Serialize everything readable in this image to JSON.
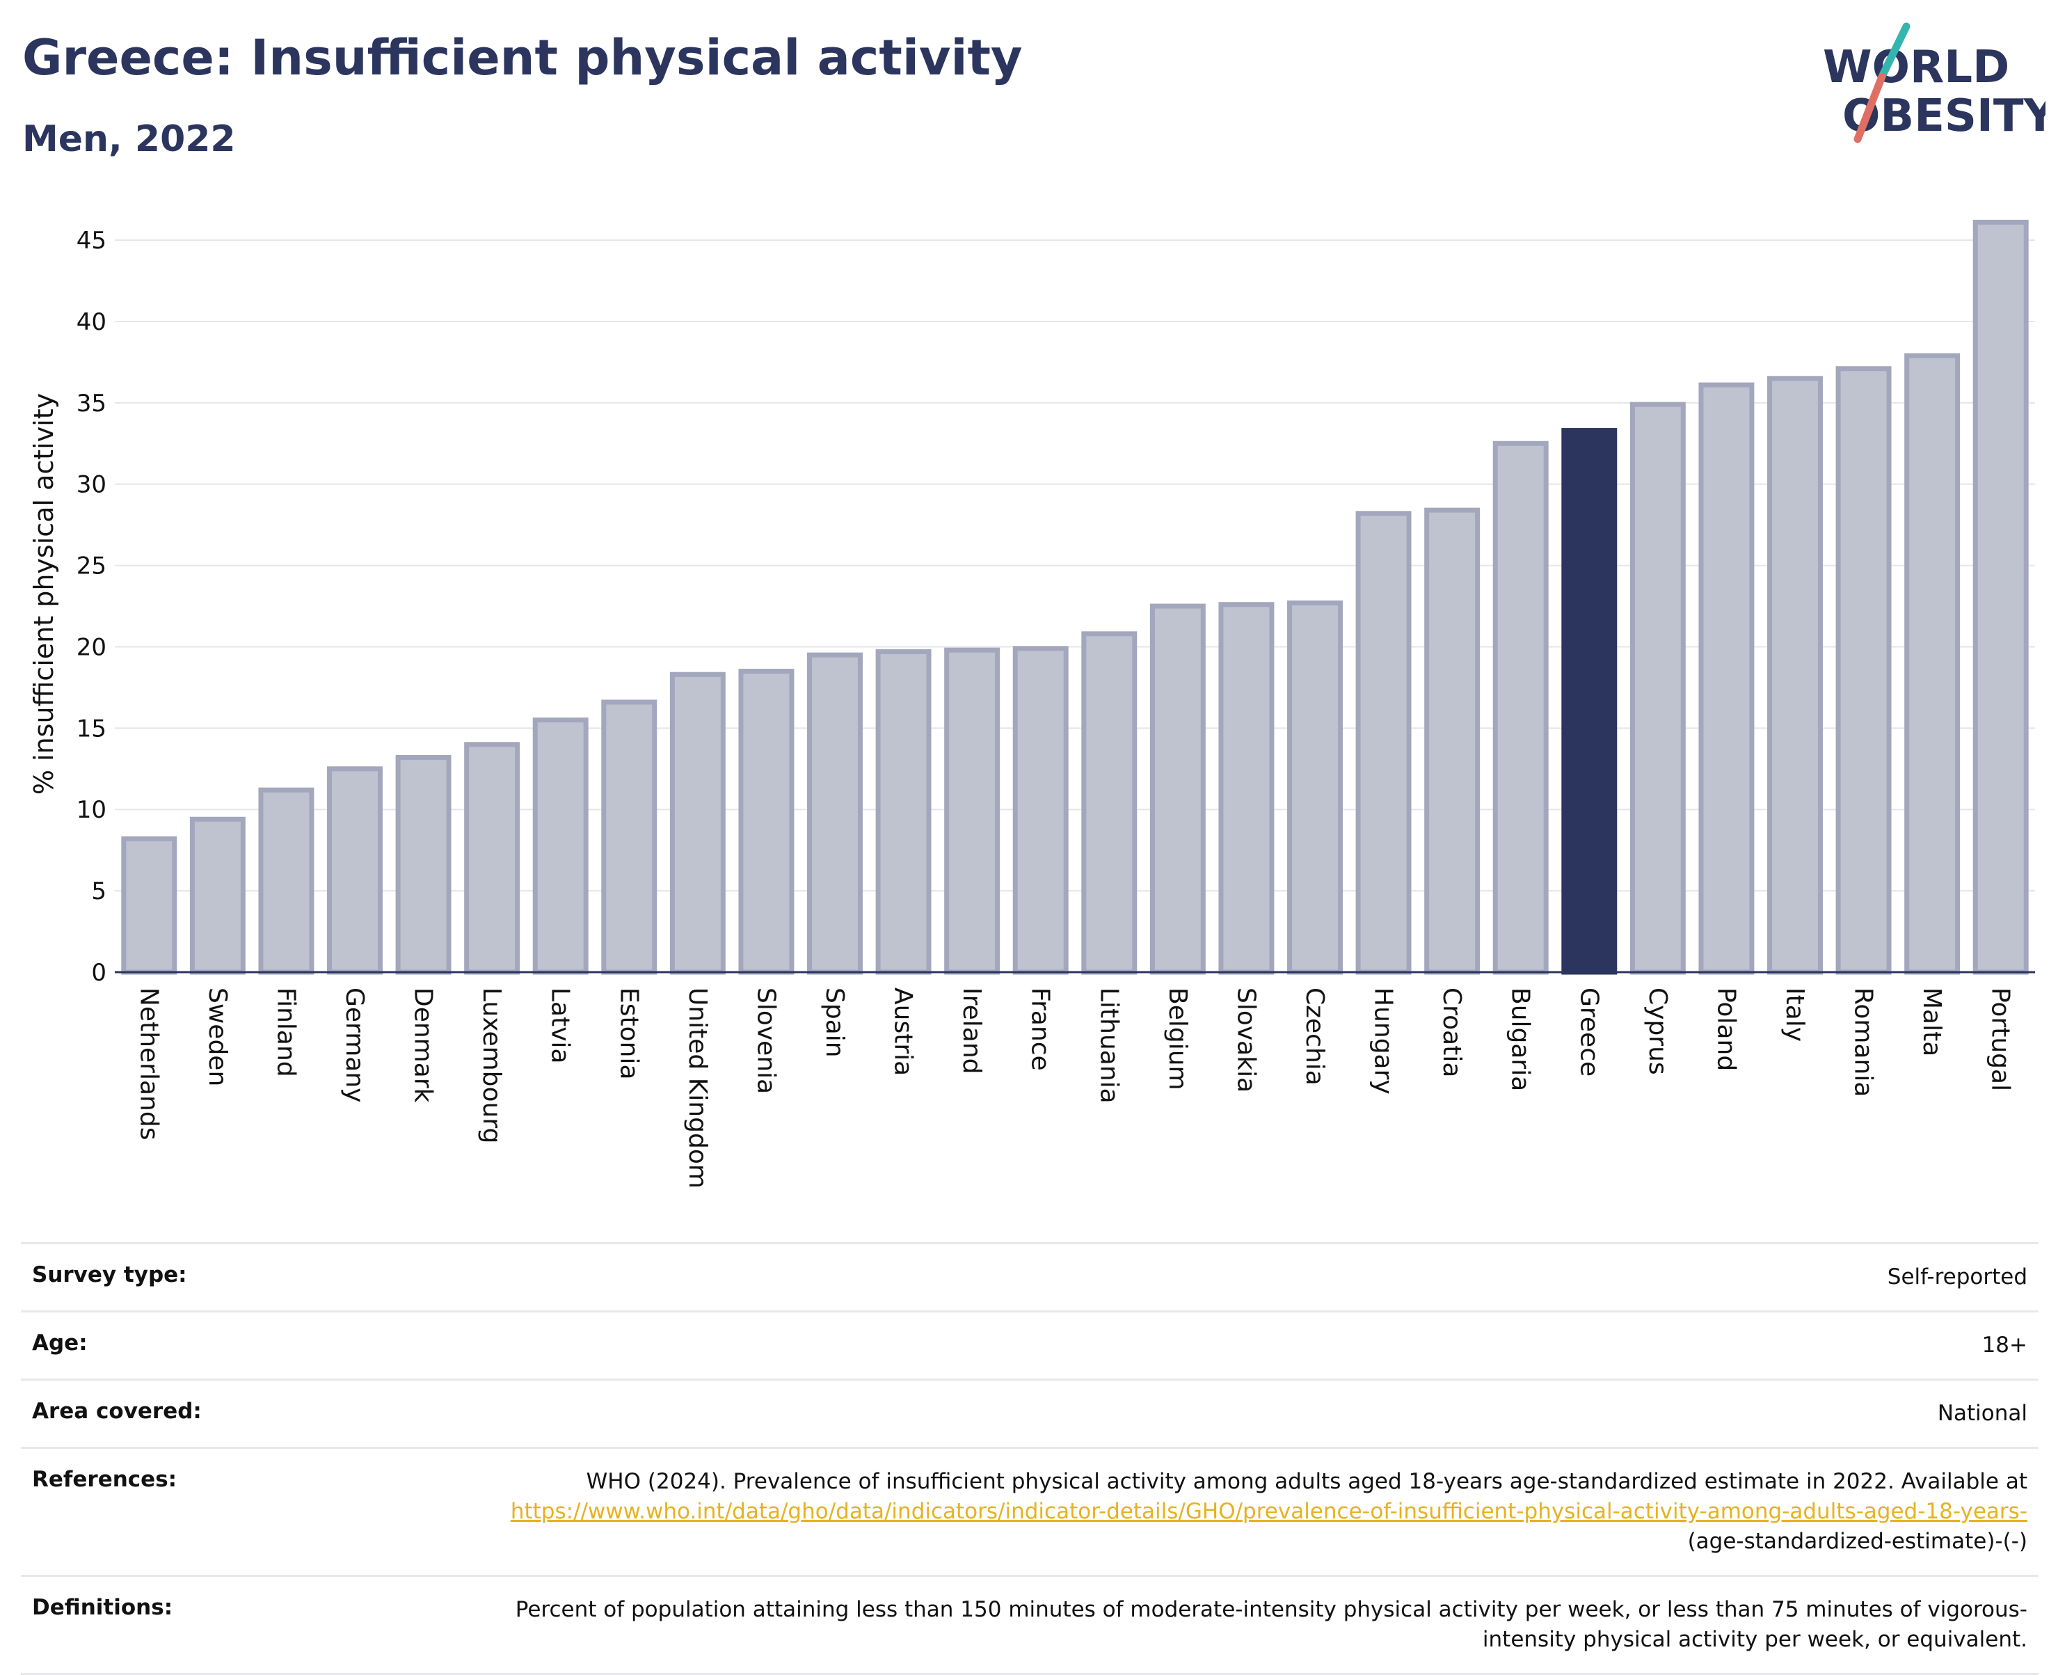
{
  "header": {
    "title": "Greece: Insufficient physical activity",
    "subtitle": "Men, 2022"
  },
  "logo": {
    "line1": "WORLD",
    "line2": "OBESITY",
    "icon": "world-obesity-logo"
  },
  "colors": {
    "highlight": "#2b355e",
    "bar_fill": "#bfc2cf",
    "bar_stroke": "#a3a7bd",
    "grid": "#e6e6ea",
    "link": "#e6b21f",
    "logo_teal": "#35b5b0",
    "logo_coral": "#e06f63"
  },
  "chart_data": {
    "type": "bar",
    "ylabel": "% insufficient physical activity",
    "ylim": [
      0,
      46.5
    ],
    "yticks": [
      0,
      5,
      10,
      15,
      20,
      25,
      30,
      35,
      40,
      45
    ],
    "grid": true,
    "highlight": "Greece",
    "categories": [
      "Netherlands",
      "Sweden",
      "Finland",
      "Germany",
      "Denmark",
      "Luxembourg",
      "Latvia",
      "Estonia",
      "United Kingdom",
      "Slovenia",
      "Spain",
      "Austria",
      "Ireland",
      "France",
      "Lithuania",
      "Belgium",
      "Slovakia",
      "Czechia",
      "Hungary",
      "Croatia",
      "Bulgaria",
      "Greece",
      "Cyprus",
      "Poland",
      "Italy",
      "Romania",
      "Malta",
      "Portugal"
    ],
    "values": [
      8.2,
      9.4,
      11.2,
      12.5,
      13.2,
      14.0,
      15.5,
      16.6,
      18.3,
      18.5,
      19.5,
      19.7,
      19.8,
      19.9,
      20.8,
      22.5,
      22.6,
      22.7,
      28.2,
      28.4,
      32.5,
      33.3,
      34.9,
      36.1,
      36.5,
      37.1,
      37.9,
      46.1
    ]
  },
  "meta": {
    "survey_type_label": "Survey type:",
    "survey_type_value": "Self-reported",
    "age_label": "Age:",
    "age_value": "18+",
    "area_label": "Area covered:",
    "area_value": "National",
    "references_label": "References:",
    "references_text": "WHO (2024). Prevalence of insufficient physical activity among adults aged 18-years age-standardized estimate in 2022. Available at",
    "references_link": "https://www.who.int/data/gho/data/indicators/indicator-details/GHO/prevalence-of-insufficient-physical-activity-among-adults-aged-18-years-",
    "references_suffix": "(age-standardized-estimate)-(-)",
    "definitions_label": "Definitions:",
    "definitions_text": "Percent of population attaining less than 150 minutes of moderate-intensity physical activity per week, or less than 75 minutes of vigorous-intensity physical activity per week, or equivalent."
  }
}
